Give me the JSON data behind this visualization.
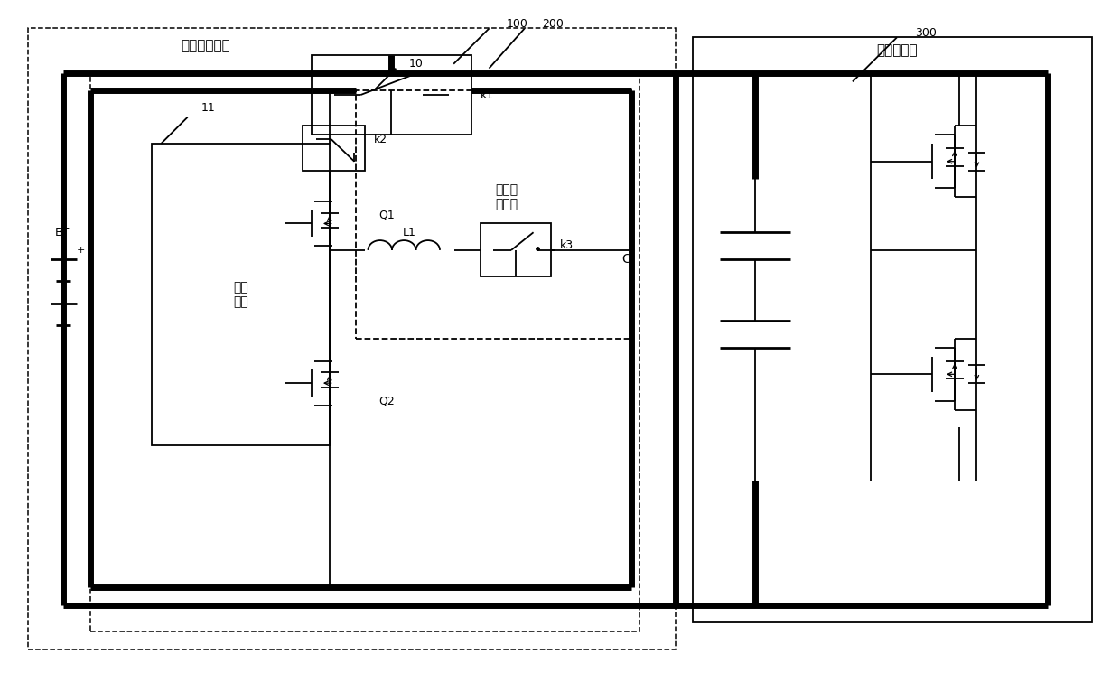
{
  "bg_color": "#ffffff",
  "lc": "#000000",
  "tlw": 5.0,
  "nlw": 1.3,
  "dlw": 1.1,
  "fw": 12.4,
  "fh": 7.55,
  "labels": {
    "bms": "电池管理系统",
    "mc": "电机控制器",
    "ctrl": "控制\n模块",
    "pre": "预充放\n电模块"
  }
}
